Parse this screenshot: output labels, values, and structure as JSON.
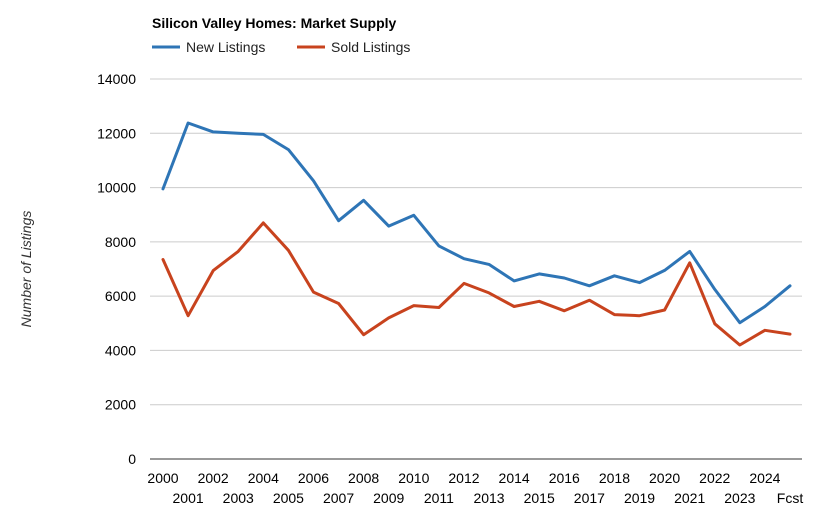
{
  "chart_data": {
    "type": "line",
    "title": "Silicon Valley Homes: Market Supply",
    "ylabel": "Number of Listings",
    "xlabel": "",
    "ylim": [
      0,
      14000
    ],
    "yticks": [
      0,
      2000,
      4000,
      6000,
      8000,
      10000,
      12000,
      14000
    ],
    "grid": true,
    "legend_position": "top-left",
    "categories": [
      "2000",
      "2001",
      "2002",
      "2003",
      "2004",
      "2005",
      "2006",
      "2007",
      "2008",
      "2009",
      "2010",
      "2011",
      "2012",
      "2013",
      "2014",
      "2015",
      "2016",
      "2017",
      "2018",
      "2019",
      "2020",
      "2021",
      "2022",
      "2023",
      "2024",
      "Fcst"
    ],
    "series": [
      {
        "name": "New Listings",
        "color": "#2e75b6",
        "values": [
          9950,
          12380,
          12050,
          12000,
          11960,
          11400,
          10250,
          8780,
          9530,
          8580,
          8980,
          7850,
          7380,
          7170,
          6560,
          6820,
          6670,
          6380,
          6750,
          6500,
          6950,
          7650,
          6250,
          5020,
          5620,
          6380
        ]
      },
      {
        "name": "Sold Listings",
        "color": "#c8431e",
        "values": [
          7350,
          5280,
          6940,
          7650,
          8700,
          7690,
          6150,
          5730,
          4580,
          5200,
          5650,
          5580,
          6470,
          6120,
          5620,
          5810,
          5460,
          5850,
          5320,
          5280,
          5490,
          7230,
          4980,
          4200,
          4740,
          4600
        ]
      }
    ]
  }
}
